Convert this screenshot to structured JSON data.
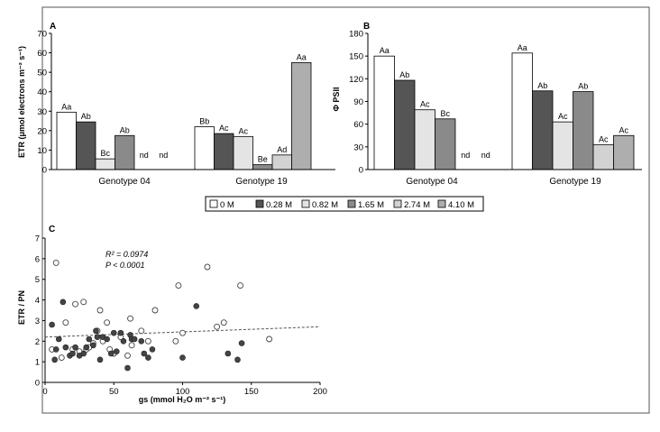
{
  "chart_data": [
    {
      "panel_label": "A",
      "type": "bar",
      "ylabel": "ETR (μmol electrons m⁻² s⁻¹)",
      "ylim": [
        0,
        70
      ],
      "yticks": [
        0,
        10,
        20,
        30,
        40,
        50,
        60,
        70
      ],
      "categories": [
        "Genotype 04",
        "Genotype 19"
      ],
      "series_names": [
        "0 M",
        "0.28 M",
        "0.82 M",
        "1.65 M",
        "2.74 M",
        "4.10 M"
      ],
      "values": [
        [
          29.5,
          24.5,
          5.5,
          17.5,
          null,
          null
        ],
        [
          22,
          18.5,
          17,
          2.5,
          7.5,
          55
        ]
      ],
      "bar_labels": [
        [
          "Aa",
          "Ab",
          "Bc",
          "Ab",
          "nd",
          "nd"
        ],
        [
          "Bb",
          "Ac",
          "Ac",
          "Be",
          "Ad",
          "Aa"
        ]
      ]
    },
    {
      "panel_label": "B",
      "type": "bar",
      "ylabel": "Φ PSII",
      "ylim": [
        0,
        180
      ],
      "yticks": [
        0,
        30,
        60,
        90,
        120,
        150,
        180
      ],
      "categories": [
        "Genotype 04",
        "Genotype 19"
      ],
      "series_names": [
        "0 M",
        "0.28 M",
        "0.82 M",
        "1.65 M",
        "2.74 M",
        "4.10 M"
      ],
      "values": [
        [
          150,
          118,
          79,
          67,
          null,
          null
        ],
        [
          154,
          104,
          63,
          103,
          33,
          45
        ]
      ],
      "bar_labels": [
        [
          "Aa",
          "Ab",
          "Ac",
          "Bc",
          "nd",
          "nd"
        ],
        [
          "Aa",
          "Ab",
          "Ac",
          "Ab",
          "Ac",
          "Ac"
        ]
      ]
    },
    {
      "panel_label": "C",
      "type": "scatter",
      "xlabel": "gs (mmol H₂O m⁻² s⁻¹)",
      "ylabel": "ETR / PN",
      "xlim": [
        0,
        200
      ],
      "ylim": [
        0,
        7
      ],
      "xticks": [
        0,
        50,
        100,
        150,
        200
      ],
      "yticks": [
        0,
        1,
        2,
        3,
        4,
        5,
        6,
        7
      ],
      "annotation_r2": "R² = 0.0974",
      "annotation_p": "P < 0.0001",
      "trendline": {
        "x": [
          0,
          200
        ],
        "y": [
          2.2,
          2.7
        ]
      },
      "open_points": {
        "x": [
          5,
          8,
          12,
          15,
          20,
          22,
          25,
          28,
          30,
          32,
          35,
          38,
          40,
          42,
          45,
          47,
          50,
          55,
          60,
          62,
          63,
          70,
          75,
          80,
          95,
          97,
          100,
          118,
          125,
          130,
          142,
          163
        ],
        "y": [
          1.6,
          5.8,
          1.2,
          2.9,
          1.6,
          3.8,
          1.5,
          3.9,
          1.6,
          1.7,
          1.9,
          2.5,
          3.5,
          2.0,
          2.9,
          1.6,
          1.4,
          2.2,
          1.3,
          3.1,
          1.8,
          2.5,
          2.0,
          3.5,
          2.0,
          4.7,
          2.4,
          5.6,
          2.7,
          2.9,
          4.7,
          2.1
        ]
      },
      "filled_points": {
        "x": [
          5,
          7,
          8,
          10,
          13,
          15,
          18,
          20,
          22,
          25,
          28,
          30,
          32,
          35,
          37,
          38,
          40,
          42,
          45,
          48,
          50,
          52,
          55,
          57,
          60,
          62,
          63,
          65,
          70,
          72,
          75,
          78,
          100,
          110,
          133,
          140,
          143
        ],
        "y": [
          2.8,
          1.1,
          1.6,
          2.1,
          3.9,
          1.7,
          1.3,
          1.4,
          1.7,
          1.3,
          1.4,
          1.7,
          2.1,
          1.8,
          2.5,
          2.2,
          1.1,
          2.2,
          2.1,
          1.4,
          2.4,
          1.5,
          2.4,
          2.0,
          0.7,
          2.3,
          2.1,
          2.1,
          2.0,
          1.4,
          1.2,
          1.6,
          1.2,
          3.7,
          1.4,
          1.1,
          1.9
        ]
      }
    }
  ],
  "fills": [
    "#ffffff",
    "#555555",
    "#e4e4e4",
    "#8a8a8a",
    "#d2d2d2",
    "#aeaeae"
  ]
}
